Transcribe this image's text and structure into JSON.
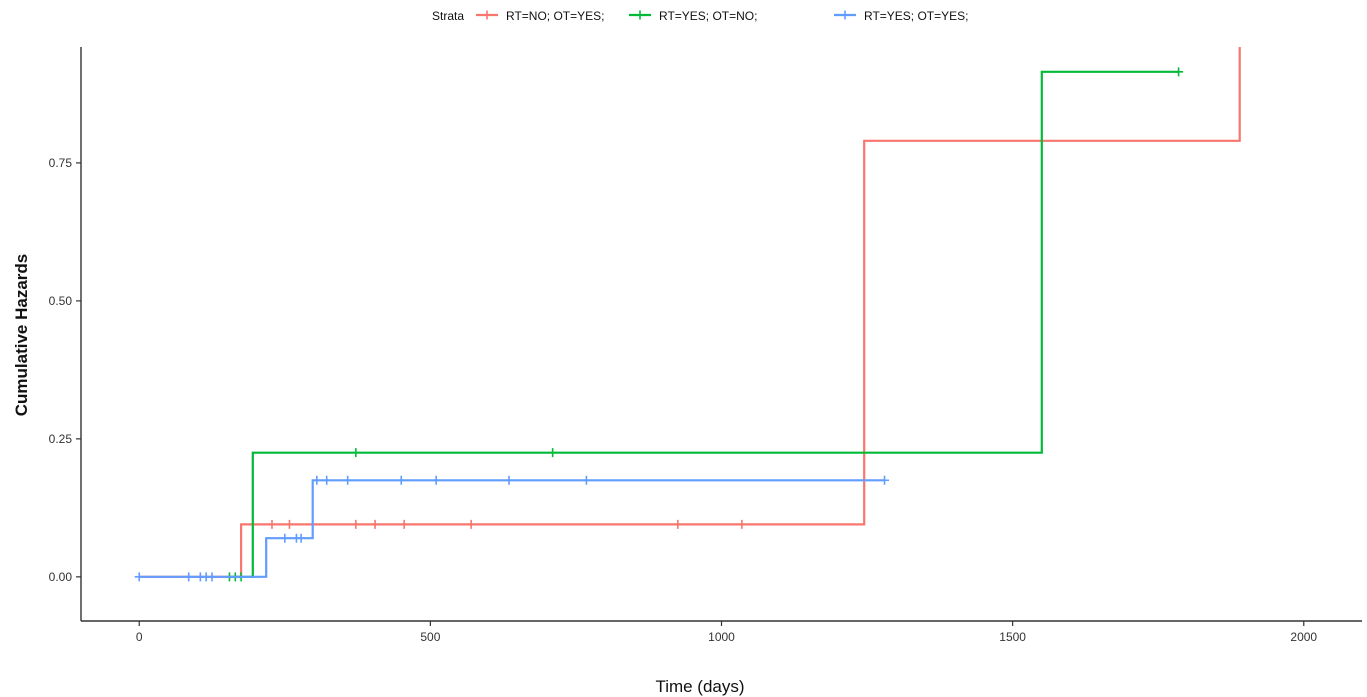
{
  "chart_data": {
    "type": "line",
    "step": true,
    "xlabel": "Time (days)",
    "ylabel": "Cumulative Hazards",
    "xlim": [
      -100,
      2100
    ],
    "ylim": [
      -0.08,
      0.96
    ],
    "xticks": [
      0,
      500,
      1000,
      1500,
      2000
    ],
    "xtick_labels": [
      "0",
      "500",
      "1000",
      "1500",
      "2000"
    ],
    "yticks": [
      0,
      0.25,
      0.5,
      0.75
    ],
    "ytick_labels": [
      "0.00",
      "0.25",
      "0.50",
      "0.75"
    ],
    "grid": false,
    "legend": {
      "title": "Strata",
      "placement": "top"
    },
    "series": [
      {
        "name": "RT=NO; OT=YES;",
        "color": "#f8766d",
        "steps": [
          [
            0,
            0
          ],
          [
            175,
            0.095
          ],
          [
            1245,
            0.79
          ],
          [
            1890,
            1.0
          ]
        ],
        "end": 1890,
        "censored": [
          [
            228,
            0.095
          ],
          [
            258,
            0.095
          ],
          [
            372,
            0.095
          ],
          [
            405,
            0.095
          ],
          [
            455,
            0.095
          ],
          [
            570,
            0.095
          ],
          [
            925,
            0.095
          ],
          [
            1035,
            0.095
          ]
        ]
      },
      {
        "name": "RT=YES; OT=NO;",
        "color": "#00ba38",
        "steps": [
          [
            155,
            0
          ],
          [
            195,
            0.225
          ],
          [
            1550,
            0.915
          ]
        ],
        "end": 1785,
        "censored": [
          [
            155,
            0
          ],
          [
            165,
            0
          ],
          [
            175,
            0
          ],
          [
            372,
            0.225
          ],
          [
            710,
            0.225
          ],
          [
            1785,
            0.915
          ]
        ]
      },
      {
        "name": "RT=YES; OT=YES;",
        "color": "#619cff",
        "steps": [
          [
            0,
            0
          ],
          [
            218,
            0.07
          ],
          [
            298,
            0.175
          ]
        ],
        "end": 1280,
        "censored": [
          [
            0,
            0
          ],
          [
            85,
            0
          ],
          [
            105,
            0
          ],
          [
            115,
            0
          ],
          [
            125,
            0
          ],
          [
            250,
            0.07
          ],
          [
            270,
            0.07
          ],
          [
            278,
            0.07
          ],
          [
            305,
            0.175
          ],
          [
            322,
            0.175
          ],
          [
            358,
            0.175
          ],
          [
            450,
            0.175
          ],
          [
            510,
            0.175
          ],
          [
            635,
            0.175
          ],
          [
            768,
            0.175
          ],
          [
            1280,
            0.175
          ]
        ]
      }
    ]
  }
}
